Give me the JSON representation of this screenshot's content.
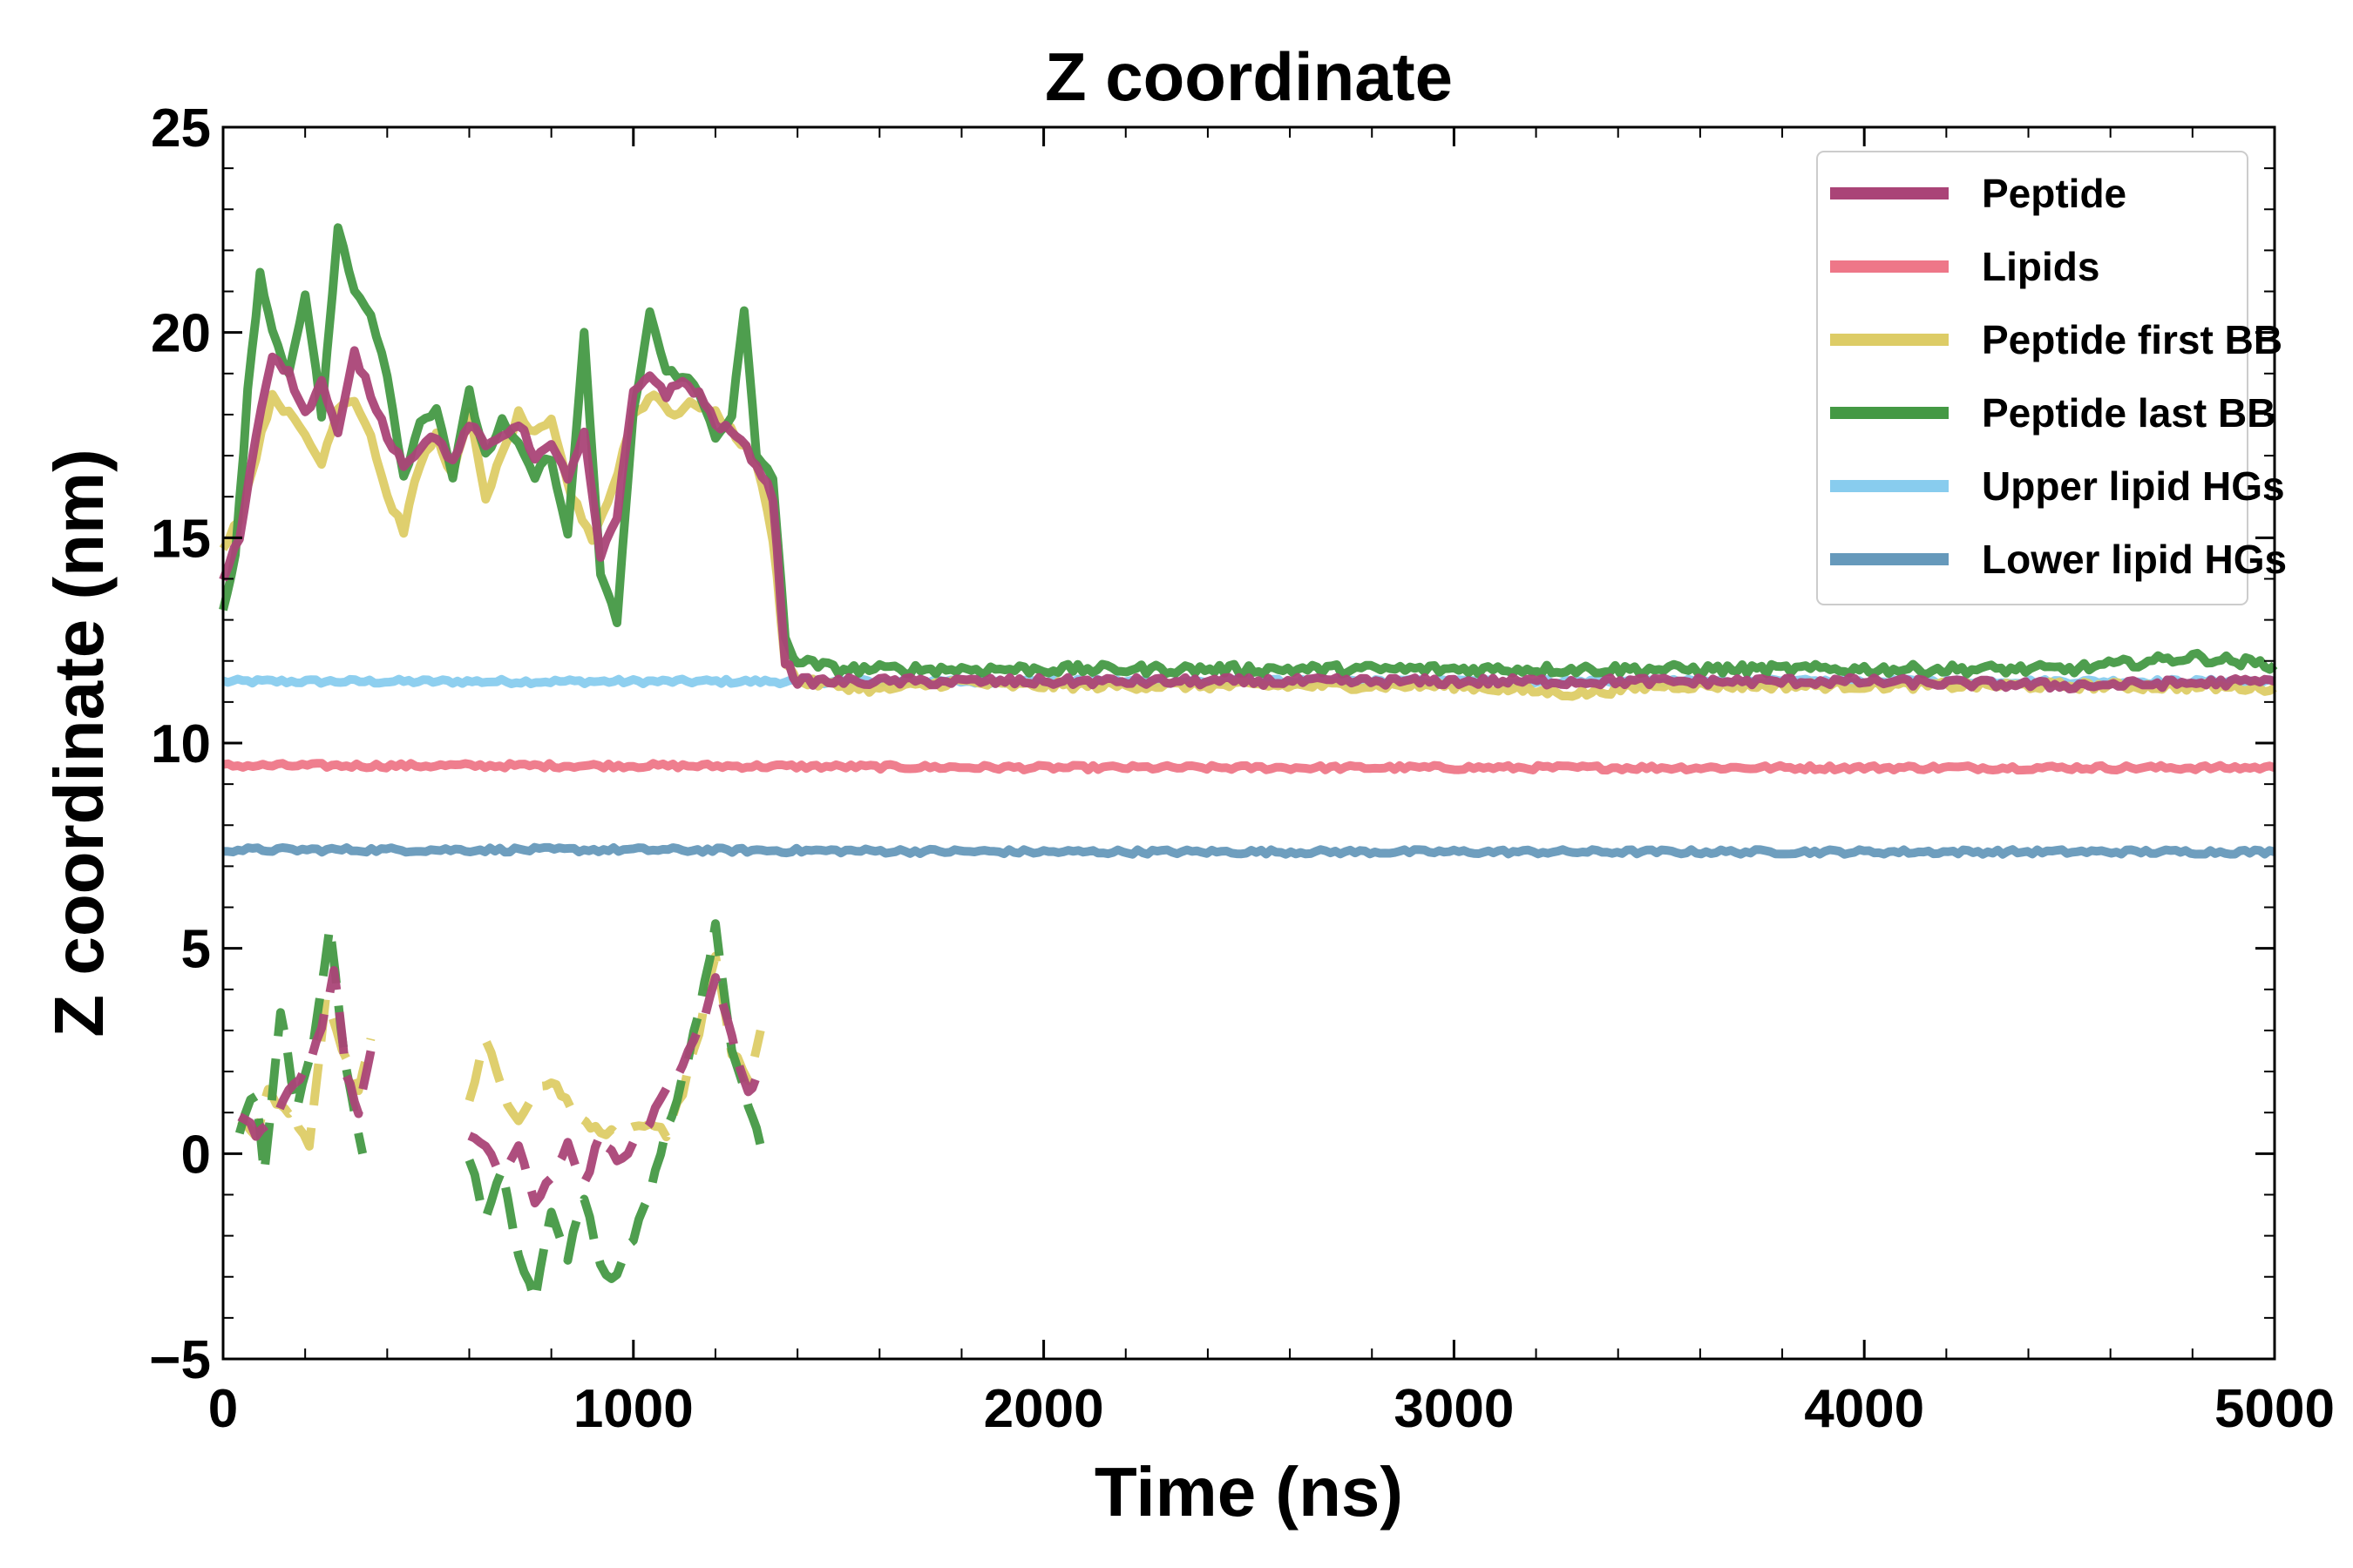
{
  "chart_data": {
    "type": "line",
    "title": "Z coordinate",
    "xlabel": "Time (ns)",
    "ylabel": "Z coordinate (nm)",
    "xlim": [
      0,
      5000
    ],
    "ylim": [
      -5,
      25
    ],
    "xticks": [
      0,
      1000,
      2000,
      3000,
      4000,
      5000
    ],
    "yticks": [
      -5,
      0,
      5,
      10,
      15,
      20,
      25
    ],
    "xtick_labels": [
      "0",
      "1000",
      "2000",
      "3000",
      "4000",
      "5000"
    ],
    "ytick_labels": [
      "−5",
      "0",
      "5",
      "10",
      "15",
      "20",
      "25"
    ],
    "legend_position": "upper-right",
    "series": [
      {
        "name": "Upper lipid HGs",
        "color": "#88CCEE",
        "style": "solid",
        "points": [
          [
            0,
            11.5
          ],
          [
            500,
            11.5
          ],
          [
            1000,
            11.5
          ],
          [
            1500,
            11.5
          ],
          [
            2000,
            11.5
          ],
          [
            2500,
            11.5
          ],
          [
            3000,
            11.5
          ],
          [
            3500,
            11.5
          ],
          [
            4000,
            11.5
          ],
          [
            4500,
            11.5
          ],
          [
            5000,
            11.5
          ]
        ],
        "noise": 0.06
      },
      {
        "name": "Lipids",
        "color": "#EE7788",
        "style": "solid",
        "points": [
          [
            0,
            9.45
          ],
          [
            1000,
            9.45
          ],
          [
            2000,
            9.4
          ],
          [
            3000,
            9.4
          ],
          [
            4000,
            9.4
          ],
          [
            5000,
            9.4
          ]
        ],
        "noise": 0.06
      },
      {
        "name": "Lower lipid HGs",
        "color": "#6699BB",
        "style": "solid",
        "points": [
          [
            0,
            7.4
          ],
          [
            1000,
            7.4
          ],
          [
            2000,
            7.35
          ],
          [
            3000,
            7.35
          ],
          [
            4000,
            7.35
          ],
          [
            5000,
            7.35
          ]
        ],
        "noise": 0.06
      },
      {
        "name": "Peptide first BB",
        "color": "#DDCC66",
        "style": "mixed",
        "segments": [
          [
            [
              0,
              14.8
            ],
            [
              40,
              15.5
            ],
            [
              80,
              17
            ],
            [
              120,
              18.5
            ],
            [
              160,
              18
            ],
            [
              200,
              17.5
            ],
            [
              240,
              16.8
            ],
            [
              280,
              18.2
            ],
            [
              320,
              18.4
            ],
            [
              360,
              17.5
            ],
            [
              400,
              16
            ],
            [
              440,
              15.2
            ],
            [
              480,
              16.8
            ],
            [
              520,
              17.5
            ],
            [
              560,
              16.5
            ],
            [
              600,
              18
            ],
            [
              640,
              16
            ],
            [
              680,
              17
            ],
            [
              720,
              18
            ],
            [
              760,
              17.5
            ],
            [
              800,
              17.8
            ],
            [
              850,
              16
            ],
            [
              900,
              15
            ],
            [
              950,
              16.2
            ],
            [
              1000,
              18
            ],
            [
              1050,
              18.5
            ],
            [
              1100,
              18
            ],
            [
              1150,
              18.3
            ],
            [
              1200,
              18
            ],
            [
              1250,
              17.5
            ],
            [
              1300,
              16.8
            ],
            [
              1340,
              15
            ],
            [
              1370,
              12
            ],
            [
              1400,
              11.5
            ],
            [
              1500,
              11.4
            ],
            [
              1600,
              11.3
            ],
            [
              1700,
              11.4
            ],
            [
              1800,
              11.5
            ],
            [
              1900,
              11.4
            ],
            [
              2000,
              11.4
            ],
            [
              2500,
              11.4
            ],
            [
              3000,
              11.4
            ],
            [
              3300,
              11.2
            ],
            [
              3500,
              11.4
            ],
            [
              4000,
              11.4
            ],
            [
              4500,
              11.4
            ],
            [
              5000,
              11.35
            ]
          ],
          [
            [
              40,
              0.8
            ],
            [
              80,
              0.5
            ],
            [
              110,
              1.5
            ],
            [
              140,
              1.2
            ],
            [
              170,
              1
            ],
            [
              210,
              0.2
            ],
            [
              250,
              3.8
            ],
            [
              290,
              2.5
            ],
            [
              330,
              1.5
            ],
            [
              360,
              2.8
            ]
          ],
          [
            [
              600,
              1.2
            ],
            [
              640,
              2.8
            ],
            [
              680,
              1.5
            ],
            [
              720,
              0.8
            ],
            [
              760,
              1.5
            ],
            [
              800,
              1.8
            ],
            [
              860,
              0.9
            ],
            [
              920,
              0.5
            ],
            [
              960,
              0.5
            ],
            [
              1000,
              0.6
            ],
            [
              1040,
              0.8
            ],
            [
              1080,
              0.5
            ],
            [
              1120,
              1.5
            ],
            [
              1160,
              3
            ],
            [
              1200,
              4.8
            ],
            [
              1240,
              2.5
            ],
            [
              1280,
              1.8
            ],
            [
              1310,
              3
            ]
          ]
        ],
        "noise": 0.1
      },
      {
        "name": "Peptide last BB",
        "color": "#449944",
        "style": "mixed",
        "segments": [
          [
            [
              0,
              13.2
            ],
            [
              30,
              14.5
            ],
            [
              60,
              18.5
            ],
            [
              90,
              21.5
            ],
            [
              120,
              20
            ],
            [
              160,
              19
            ],
            [
              200,
              21
            ],
            [
              240,
              18
            ],
            [
              280,
              22.5
            ],
            [
              320,
              21
            ],
            [
              360,
              20.5
            ],
            [
              400,
              19
            ],
            [
              440,
              16.5
            ],
            [
              480,
              17.8
            ],
            [
              520,
              18.2
            ],
            [
              560,
              16.5
            ],
            [
              600,
              18.5
            ],
            [
              640,
              17
            ],
            [
              680,
              17.8
            ],
            [
              720,
              17.2
            ],
            [
              760,
              16.5
            ],
            [
              800,
              17
            ],
            [
              840,
              15
            ],
            [
              880,
              20
            ],
            [
              920,
              14
            ],
            [
              960,
              13
            ],
            [
              1000,
              18
            ],
            [
              1040,
              20.5
            ],
            [
              1080,
              19
            ],
            [
              1120,
              19
            ],
            [
              1160,
              18.5
            ],
            [
              1200,
              17.5
            ],
            [
              1240,
              18
            ],
            [
              1270,
              20.5
            ],
            [
              1300,
              17
            ],
            [
              1340,
              16.5
            ],
            [
              1370,
              12.5
            ],
            [
              1400,
              12
            ],
            [
              1500,
              11.8
            ],
            [
              1600,
              11.8
            ],
            [
              1700,
              11.8
            ],
            [
              1800,
              11.8
            ],
            [
              2000,
              11.8
            ],
            [
              2500,
              11.8
            ],
            [
              3000,
              11.8
            ],
            [
              3500,
              11.8
            ],
            [
              4000,
              11.8
            ],
            [
              4500,
              11.8
            ],
            [
              4800,
              12.1
            ],
            [
              5000,
              11.9
            ]
          ],
          [
            [
              40,
              0.6
            ],
            [
              80,
              1.5
            ],
            [
              100,
              -0.5
            ],
            [
              140,
              3.5
            ],
            [
              180,
              1
            ],
            [
              220,
              2.8
            ],
            [
              260,
              5.5
            ],
            [
              300,
              2
            ],
            [
              340,
              0
            ]
          ],
          [
            [
              600,
              -0.2
            ],
            [
              640,
              -1.5
            ],
            [
              680,
              -0.5
            ],
            [
              720,
              -2.5
            ],
            [
              760,
              -3.5
            ],
            [
              800,
              -1.5
            ],
            [
              840,
              -2.5
            ],
            [
              880,
              -1
            ],
            [
              920,
              -2.8
            ],
            [
              960,
              -3
            ],
            [
              1000,
              -2
            ],
            [
              1040,
              -1
            ],
            [
              1080,
              0.5
            ],
            [
              1120,
              1.8
            ],
            [
              1160,
              3.5
            ],
            [
              1200,
              5.5
            ],
            [
              1240,
              2.5
            ],
            [
              1280,
              1.2
            ],
            [
              1310,
              0.2
            ]
          ]
        ],
        "noise": 0.12
      },
      {
        "name": "Peptide",
        "color": "#AA4477",
        "style": "mixed",
        "segments": [
          [
            [
              0,
              14
            ],
            [
              40,
              15
            ],
            [
              80,
              17.5
            ],
            [
              120,
              19.5
            ],
            [
              160,
              19
            ],
            [
              200,
              18
            ],
            [
              240,
              18.8
            ],
            [
              280,
              17.5
            ],
            [
              320,
              19.5
            ],
            [
              360,
              18.5
            ],
            [
              400,
              17.5
            ],
            [
              440,
              16.8
            ],
            [
              480,
              17.2
            ],
            [
              520,
              17.5
            ],
            [
              560,
              16.8
            ],
            [
              600,
              17.8
            ],
            [
              640,
              17.2
            ],
            [
              680,
              17.5
            ],
            [
              720,
              17.8
            ],
            [
              760,
              17
            ],
            [
              800,
              17.2
            ],
            [
              840,
              16.5
            ],
            [
              880,
              17.5
            ],
            [
              920,
              14.5
            ],
            [
              960,
              15.5
            ],
            [
              1000,
              18.5
            ],
            [
              1040,
              19
            ],
            [
              1080,
              18.5
            ],
            [
              1120,
              18.8
            ],
            [
              1160,
              18.5
            ],
            [
              1200,
              17.8
            ],
            [
              1250,
              17.5
            ],
            [
              1300,
              16.8
            ],
            [
              1340,
              16
            ],
            [
              1370,
              12
            ],
            [
              1400,
              11.5
            ],
            [
              1500,
              11.5
            ],
            [
              1600,
              11.5
            ],
            [
              1700,
              11.5
            ],
            [
              1800,
              11.5
            ],
            [
              2000,
              11.5
            ],
            [
              2500,
              11.5
            ],
            [
              3000,
              11.5
            ],
            [
              3500,
              11.5
            ],
            [
              4000,
              11.5
            ],
            [
              4500,
              11.4
            ],
            [
              5000,
              11.5
            ]
          ],
          [
            [
              40,
              1
            ],
            [
              80,
              0.5
            ],
            [
              120,
              0.8
            ],
            [
              160,
              1.5
            ],
            [
              200,
              2
            ],
            [
              240,
              3
            ],
            [
              270,
              4.5
            ],
            [
              300,
              2
            ],
            [
              330,
              1
            ],
            [
              360,
              2.5
            ]
          ],
          [
            [
              600,
              0.5
            ],
            [
              640,
              0.2
            ],
            [
              680,
              -0.5
            ],
            [
              720,
              0.2
            ],
            [
              760,
              -1.2
            ],
            [
              800,
              -0.5
            ],
            [
              840,
              0.2
            ],
            [
              880,
              -0.8
            ],
            [
              920,
              0.5
            ],
            [
              960,
              -0.2
            ],
            [
              1000,
              0.2
            ],
            [
              1040,
              0.8
            ],
            [
              1080,
              1.5
            ],
            [
              1120,
              2.2
            ],
            [
              1160,
              3
            ],
            [
              1200,
              4.2
            ],
            [
              1240,
              2.8
            ],
            [
              1280,
              1.5
            ],
            [
              1310,
              2
            ]
          ]
        ],
        "noise": 0.1
      }
    ],
    "legend_order": [
      "Peptide",
      "Lipids",
      "Peptide first BB",
      "Peptide last BB",
      "Upper lipid HGs",
      "Lower lipid HGs"
    ]
  }
}
